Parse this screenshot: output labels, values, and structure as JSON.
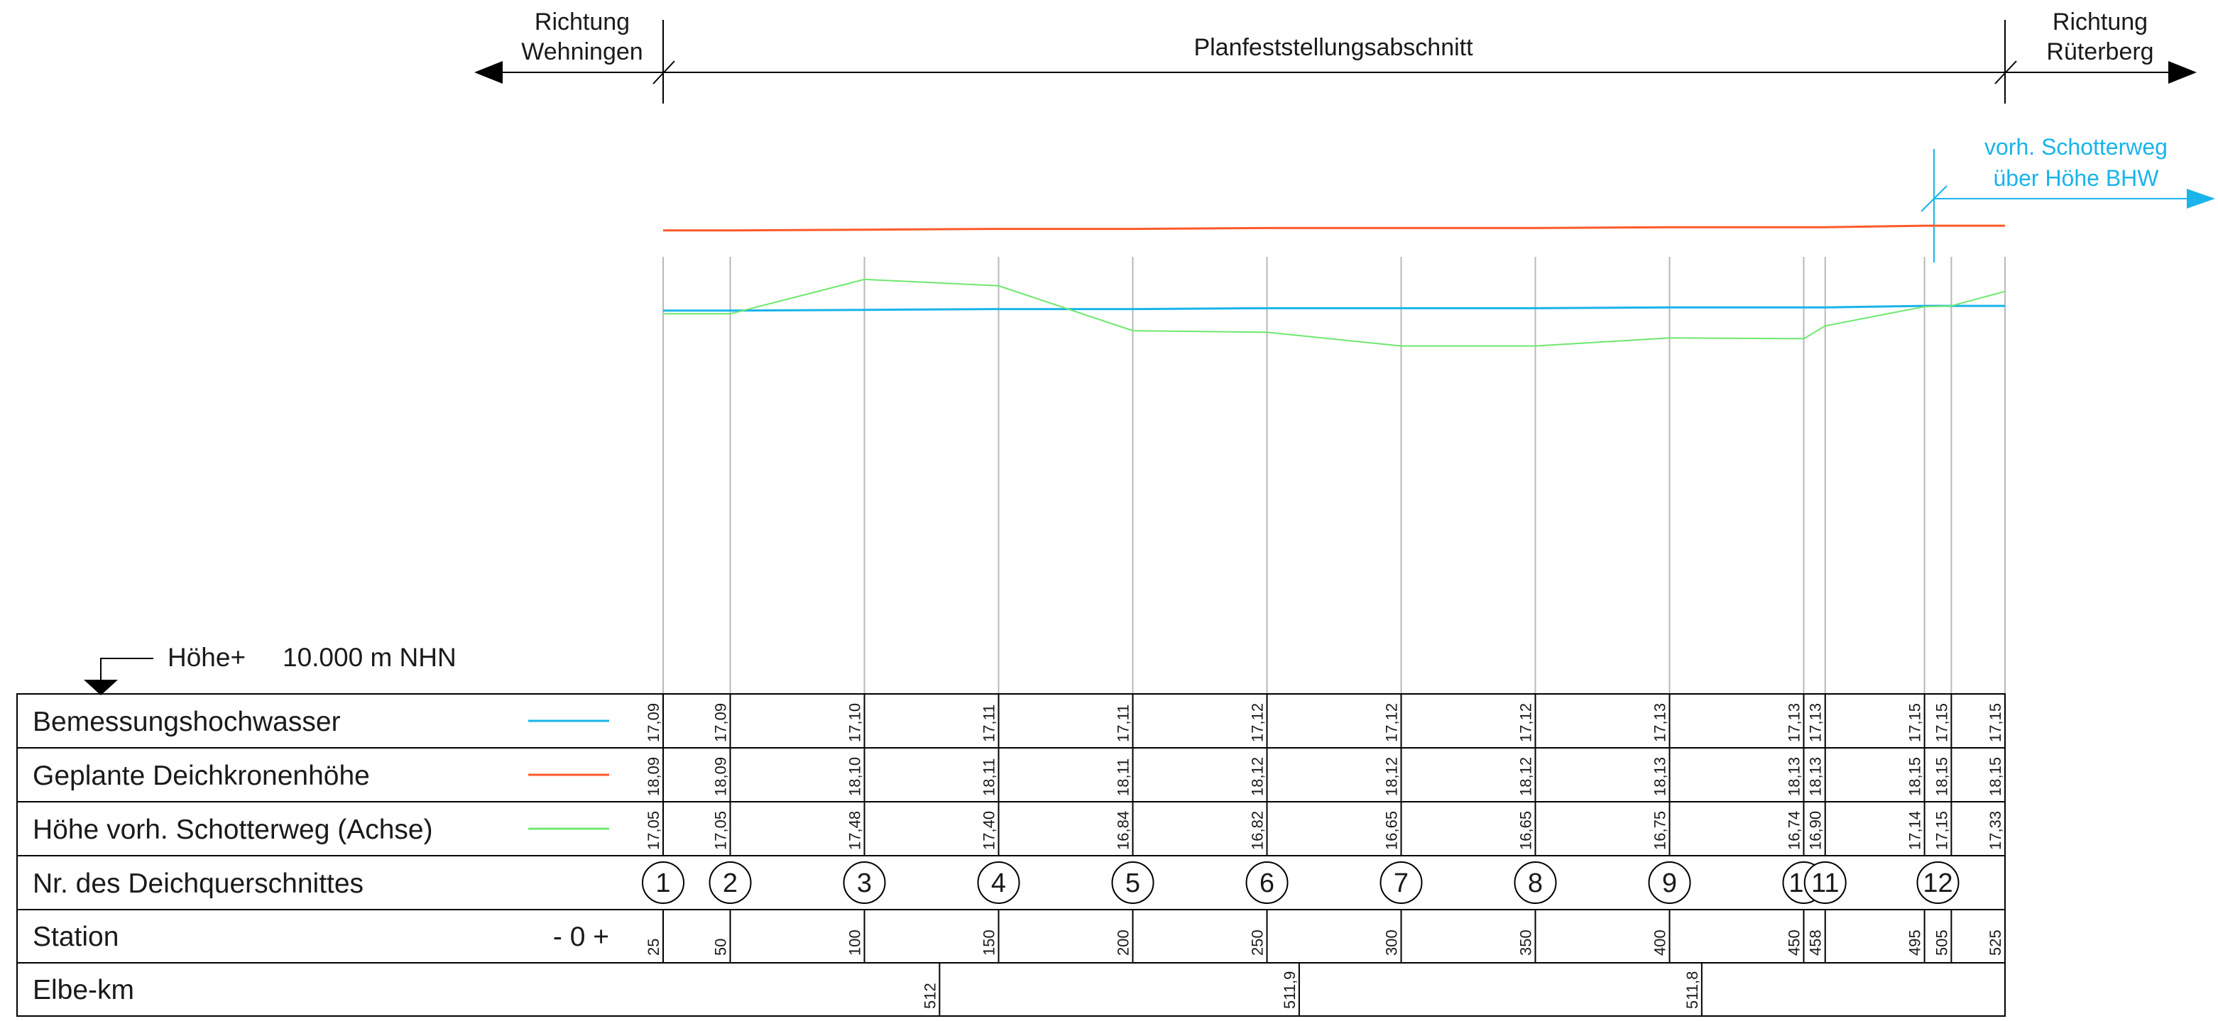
{
  "header": {
    "left_direction": [
      "Richtung",
      "Wehningen"
    ],
    "section": "Planfeststellungsabschnitt",
    "right_direction": [
      "Richtung",
      "Rüterberg"
    ]
  },
  "annotation": {
    "lines": [
      "vorh. Schotterweg",
      "über Höhe BHW"
    ]
  },
  "datum": {
    "label": "Höhe+",
    "value": "10.000 m NHN"
  },
  "colors": {
    "bemessungshochwasser": "#19b4ea",
    "deichkrone": "#ff5a2a",
    "schotterweg": "#6ee86e",
    "annotation": "#19b4ea",
    "gridline": "#b8b8b8"
  },
  "table": {
    "rows": [
      {
        "label": "Bemessungshochwasser",
        "legend": "bemessungshochwasser"
      },
      {
        "label": "Geplante Deichkronenhöhe",
        "legend": "deichkrone"
      },
      {
        "label": "Höhe vorh. Schotterweg (Achse)",
        "legend": "schotterweg"
      },
      {
        "label": "Nr. des Deichquerschnittes"
      },
      {
        "label": "Station",
        "marker": "- 0 +"
      },
      {
        "label": "Elbe-km"
      }
    ],
    "elbe_km": [
      "512",
      "511,9",
      "511,8"
    ]
  },
  "chart_data": {
    "type": "line",
    "x_label": "Station",
    "x": [
      25,
      50,
      100,
      150,
      200,
      250,
      300,
      350,
      400,
      450,
      458,
      495,
      505,
      525
    ],
    "station_labels": [
      "25",
      "50",
      "100",
      "150",
      "200",
      "250",
      "300",
      "350",
      "400",
      "450",
      "458",
      "495",
      "505",
      "525"
    ],
    "section_start": 25,
    "section_end": 525,
    "annotation_start": 500,
    "datum": 10.0,
    "series": [
      {
        "name": "Bemessungshochwasser",
        "color": "#19b4ea",
        "values": [
          "17,09",
          "17,09",
          "17,10",
          "17,11",
          "17,11",
          "17,12",
          "17,12",
          "17,12",
          "17,13",
          "17,13",
          "17,13",
          "17,15",
          "17,15",
          "17,15"
        ]
      },
      {
        "name": "Geplante Deichkronenhöhe",
        "color": "#ff5a2a",
        "values": [
          "18,09",
          "18,09",
          "18,10",
          "18,11",
          "18,11",
          "18,12",
          "18,12",
          "18,12",
          "18,13",
          "18,13",
          "18,13",
          "18,15",
          "18,15",
          "18,15"
        ]
      },
      {
        "name": "Höhe vorh. Schotterweg (Achse)",
        "color": "#6ee86e",
        "values": [
          "17,05",
          "17,05",
          "17,48",
          "17,40",
          "16,84",
          "16,82",
          "16,65",
          "16,65",
          "16,75",
          "16,74",
          "16,90",
          "17,14",
          "17,15",
          "17,33"
        ]
      }
    ],
    "cross_sections": [
      {
        "nr": "1",
        "station": 25
      },
      {
        "nr": "2",
        "station": 50
      },
      {
        "nr": "3",
        "station": 100
      },
      {
        "nr": "4",
        "station": 150
      },
      {
        "nr": "5",
        "station": 200
      },
      {
        "nr": "6",
        "station": 250
      },
      {
        "nr": "7",
        "station": 300
      },
      {
        "nr": "8",
        "station": 350
      },
      {
        "nr": "9",
        "station": 400
      },
      {
        "nr": "10",
        "station": 450
      },
      {
        "nr": "11",
        "station": 458
      },
      {
        "nr": "12",
        "station": 500
      }
    ],
    "elbe_km_stations": [
      128,
      262,
      412
    ]
  }
}
